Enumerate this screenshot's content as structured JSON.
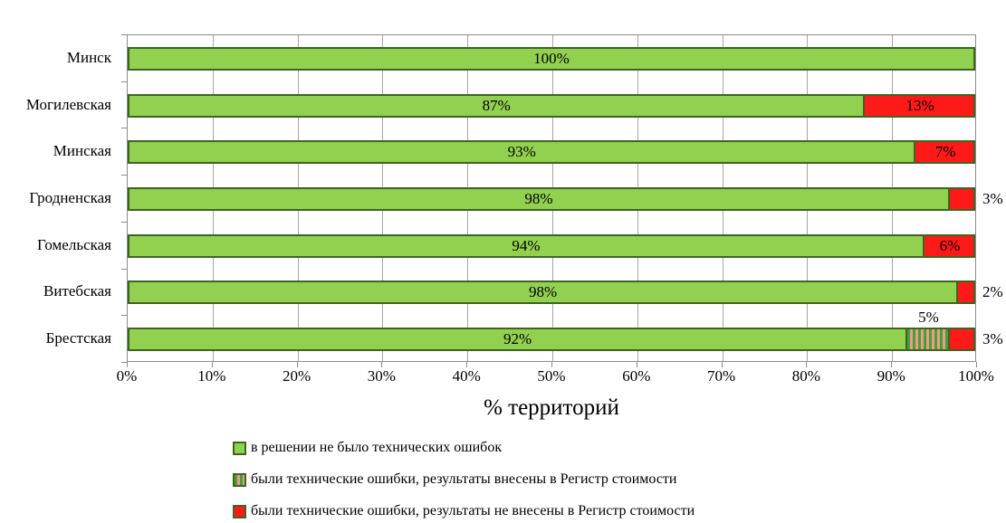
{
  "chart_data": {
    "type": "bar",
    "orientation": "horizontal",
    "stacked": true,
    "title": "",
    "xlabel": "% территорий",
    "xlim": [
      0,
      100
    ],
    "x_tick_labels": [
      "0%",
      "10%",
      "20%",
      "30%",
      "40%",
      "50%",
      "60%",
      "70%",
      "80%",
      "90%",
      "100%"
    ],
    "grid": true,
    "legend_position": "bottom-left",
    "categories": [
      "Минск",
      "Могилевская",
      "Минская",
      "Гродненская",
      "Гомельская",
      "Витебская",
      "Брестская"
    ],
    "series": [
      {
        "name": "в решении не было технических ошибок",
        "style": "green-solid",
        "values": [
          100,
          87,
          93,
          98,
          94,
          98,
          92
        ],
        "labels": [
          "100%",
          "87%",
          "93%",
          "98%",
          "94%",
          "98%",
          "92%"
        ]
      },
      {
        "name": "были технические ошибки, результаты внесены в Регистр стоимости",
        "style": "green-striped",
        "values": [
          0,
          0,
          0,
          0,
          0,
          0,
          5
        ],
        "labels": [
          "",
          "",
          "",
          "",
          "",
          "",
          "5%"
        ]
      },
      {
        "name": "были технические ошибки, результаты не внесены в Регистр стоимости",
        "style": "red-solid",
        "values": [
          0,
          13,
          7,
          3,
          6,
          2,
          3
        ],
        "labels": [
          "",
          "13%",
          "7%",
          "3%",
          "6%",
          "2%",
          "3%"
        ]
      }
    ],
    "colors": {
      "green_fill": "#92d050",
      "segment_border": "#3d651f",
      "red_fill": "#ff1a1a",
      "stripe_green": "#44a03b",
      "stripe_salmon": "#ef9b85",
      "gridline": "#a6a6a6",
      "axis": "#8c8c8c",
      "text": "#000000"
    }
  }
}
